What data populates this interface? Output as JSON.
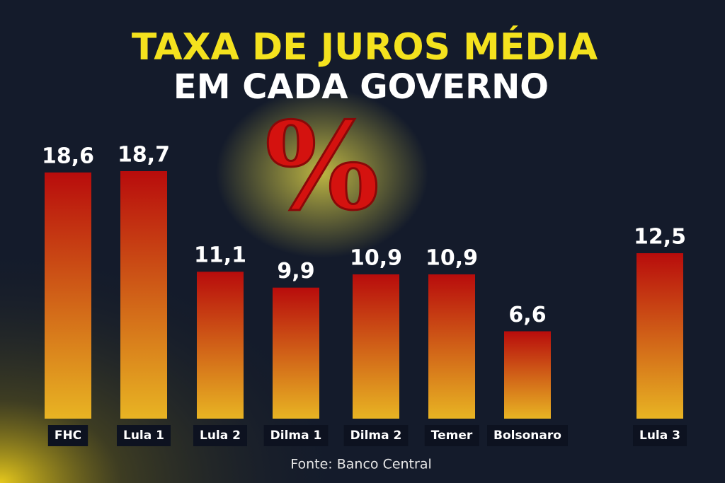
{
  "chart_data": {
    "type": "bar",
    "title": "TAXA DE JUROS MÉDIA",
    "subtitle": "EM CADA GOVERNO",
    "symbol": "%",
    "categories": [
      "FHC",
      "Lula 1",
      "Lula 2",
      "Dilma 1",
      "Dilma 2",
      "Temer",
      "Bolsonaro",
      "Lula 3"
    ],
    "values": [
      18.6,
      18.7,
      11.1,
      9.9,
      10.9,
      10.9,
      6.6,
      12.5
    ],
    "value_labels": [
      "18,6",
      "18,7",
      "11,1",
      "9,9",
      "10,9",
      "10,9",
      "6,6",
      "12,5"
    ],
    "colors": [
      "#b80c0c",
      "#e8b423"
    ],
    "source": "Fonte: Banco Central"
  }
}
